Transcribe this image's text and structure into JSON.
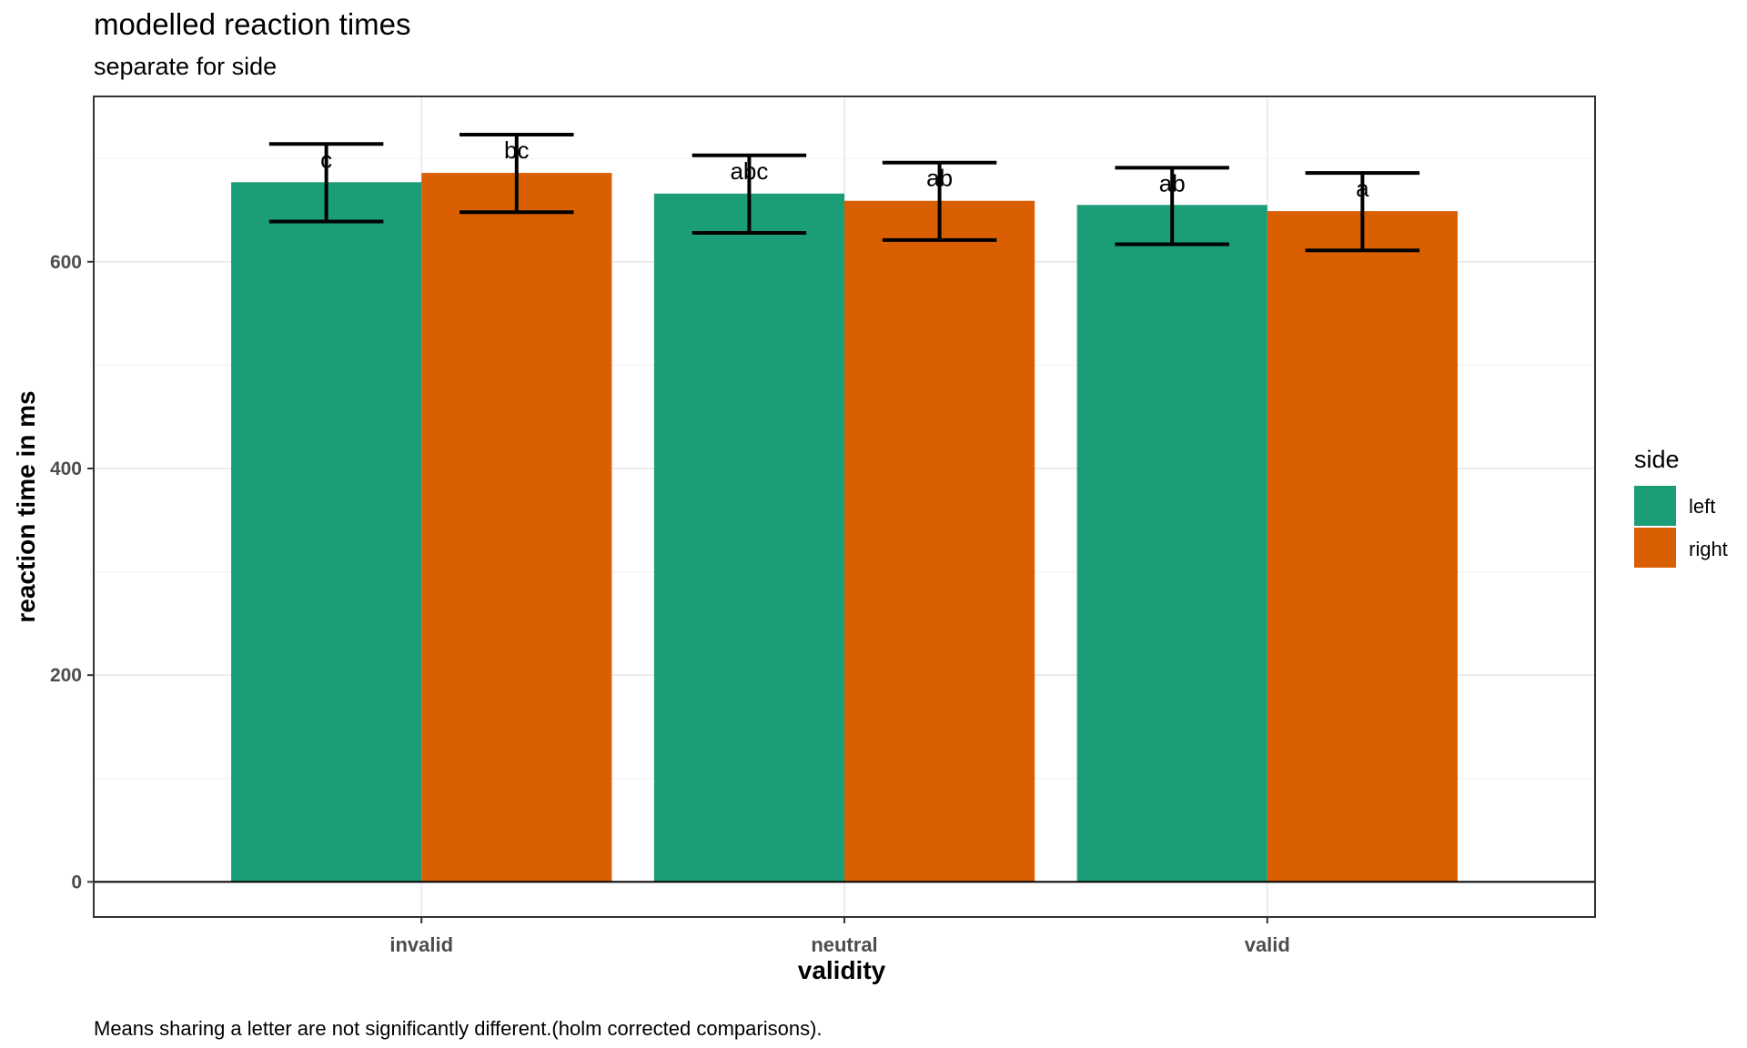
{
  "chart_data": {
    "type": "bar",
    "title": "modelled reaction times",
    "subtitle": "separate for side",
    "xlabel": "validity",
    "ylabel": "reaction time in ms",
    "caption": "Means sharing a letter are not significantly different.(holm corrected comparisons).",
    "categories": [
      "invalid",
      "neutral",
      "valid"
    ],
    "ylim": [
      -34,
      760
    ],
    "yticks": [
      0,
      200,
      400,
      600
    ],
    "grid": true,
    "legend": {
      "title": "side",
      "position": "right"
    },
    "series": [
      {
        "name": "left",
        "color": "#1b9e77",
        "values": [
          677,
          666,
          655
        ],
        "ci_low": [
          639,
          628,
          617
        ],
        "ci_high": [
          714,
          703,
          691
        ],
        "letters": [
          "c",
          "abc",
          "ab"
        ]
      },
      {
        "name": "right",
        "color": "#d95f02",
        "values": [
          686,
          659,
          649
        ],
        "ci_low": [
          648,
          621,
          611
        ],
        "ci_high": [
          723,
          696,
          686
        ],
        "letters": [
          "bc",
          "ab",
          "a"
        ]
      }
    ]
  }
}
